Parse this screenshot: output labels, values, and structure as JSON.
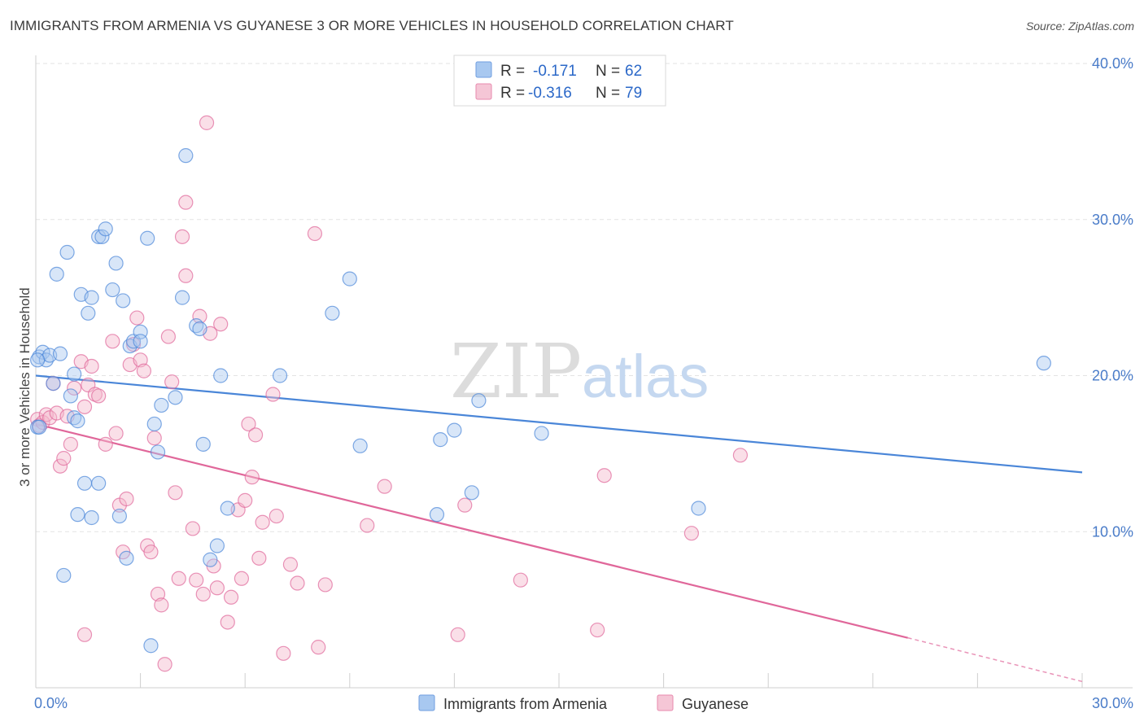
{
  "title": "IMMIGRANTS FROM ARMENIA VS GUYANESE 3 OR MORE VEHICLES IN HOUSEHOLD CORRELATION CHART",
  "source": "Source: ZipAtlas.com",
  "watermark": {
    "zip": "ZIP",
    "atlas": "atlas"
  },
  "legend": {
    "r_label": "R =",
    "n_label": "N =",
    "armenia": {
      "r": "-0.171",
      "n": "62",
      "color": "#a8c8f0"
    },
    "guyanese": {
      "r": "-0.316",
      "n": "79",
      "color": "#f5b8cc"
    }
  },
  "chart_data": {
    "type": "scatter",
    "title": "IMMIGRANTS FROM ARMENIA VS GUYANESE 3 OR MORE VEHICLES IN HOUSEHOLD CORRELATION CHART",
    "xlabel": "",
    "ylabel": "3 or more Vehicles in Household",
    "xlim": [
      0,
      30
    ],
    "ylim": [
      0,
      40
    ],
    "x_tick_labels": [
      "0.0%",
      "30.0%"
    ],
    "y_ticks": [
      10,
      20,
      30,
      40
    ],
    "y_tick_labels": [
      "10.0%",
      "20.0%",
      "30.0%",
      "40.0%"
    ],
    "series": [
      {
        "name": "Immigrants from Armenia",
        "color": "#4a86d8",
        "fill": "#a8c8f0",
        "trend": {
          "x": [
            0,
            30
          ],
          "y": [
            20.0,
            13.8
          ]
        },
        "points": [
          [
            0.1,
            21.2
          ],
          [
            0.2,
            21.5
          ],
          [
            0.3,
            21.0
          ],
          [
            0.4,
            21.3
          ],
          [
            0.5,
            19.5
          ],
          [
            0.6,
            26.5
          ],
          [
            0.7,
            21.4
          ],
          [
            0.8,
            7.2
          ],
          [
            0.9,
            27.9
          ],
          [
            1.0,
            18.7
          ],
          [
            1.1,
            17.3
          ],
          [
            1.1,
            20.1
          ],
          [
            1.2,
            17.1
          ],
          [
            1.2,
            11.1
          ],
          [
            1.3,
            25.2
          ],
          [
            1.4,
            13.1
          ],
          [
            1.5,
            24.0
          ],
          [
            1.6,
            25.0
          ],
          [
            1.6,
            10.9
          ],
          [
            1.8,
            13.1
          ],
          [
            1.8,
            28.9
          ],
          [
            1.9,
            28.9
          ],
          [
            2.0,
            29.4
          ],
          [
            2.2,
            25.5
          ],
          [
            2.3,
            27.2
          ],
          [
            2.4,
            11.0
          ],
          [
            2.5,
            24.8
          ],
          [
            2.6,
            8.3
          ],
          [
            2.7,
            21.9
          ],
          [
            2.8,
            22.2
          ],
          [
            3.0,
            22.8
          ],
          [
            3.0,
            22.2
          ],
          [
            3.2,
            28.8
          ],
          [
            3.4,
            16.9
          ],
          [
            3.5,
            15.1
          ],
          [
            3.3,
            2.7
          ],
          [
            3.6,
            18.1
          ],
          [
            4.0,
            18.6
          ],
          [
            4.2,
            25.0
          ],
          [
            4.3,
            34.1
          ],
          [
            4.6,
            23.2
          ],
          [
            4.7,
            23.0
          ],
          [
            4.8,
            15.6
          ],
          [
            5.0,
            8.2
          ],
          [
            5.2,
            9.1
          ],
          [
            5.3,
            20.0
          ],
          [
            5.5,
            11.5
          ],
          [
            7.0,
            20.0
          ],
          [
            8.5,
            24.0
          ],
          [
            9.0,
            26.2
          ],
          [
            9.3,
            15.5
          ],
          [
            11.5,
            11.1
          ],
          [
            11.6,
            15.9
          ],
          [
            12.0,
            16.5
          ],
          [
            12.5,
            12.5
          ],
          [
            12.7,
            18.4
          ],
          [
            14.5,
            16.3
          ],
          [
            19.0,
            11.5
          ],
          [
            28.9,
            20.8
          ],
          [
            0.05,
            16.7
          ],
          [
            0.05,
            21.0
          ],
          [
            0.1,
            16.7
          ]
        ]
      },
      {
        "name": "Guyanese",
        "color": "#e0679a",
        "fill": "#f5b8cc",
        "trend": {
          "x": [
            0,
            25
          ],
          "y": [
            16.9,
            3.2
          ]
        },
        "trend_dashed": {
          "x": [
            25,
            30
          ],
          "y": [
            3.2,
            0.4
          ]
        },
        "points": [
          [
            0.05,
            17.2
          ],
          [
            0.1,
            16.8
          ],
          [
            0.2,
            17.0
          ],
          [
            0.3,
            17.5
          ],
          [
            0.4,
            17.3
          ],
          [
            0.5,
            19.5
          ],
          [
            0.6,
            17.6
          ],
          [
            0.7,
            14.2
          ],
          [
            0.8,
            14.7
          ],
          [
            0.9,
            17.4
          ],
          [
            1.0,
            15.6
          ],
          [
            1.1,
            19.2
          ],
          [
            1.3,
            20.9
          ],
          [
            1.4,
            18.0
          ],
          [
            1.5,
            19.4
          ],
          [
            1.6,
            20.6
          ],
          [
            1.7,
            18.8
          ],
          [
            1.8,
            18.7
          ],
          [
            1.4,
            3.4
          ],
          [
            2.0,
            15.6
          ],
          [
            2.2,
            22.2
          ],
          [
            2.3,
            16.3
          ],
          [
            2.4,
            11.7
          ],
          [
            2.5,
            8.7
          ],
          [
            2.6,
            12.1
          ],
          [
            2.7,
            20.7
          ],
          [
            2.8,
            22.0
          ],
          [
            2.9,
            23.7
          ],
          [
            3.0,
            21.0
          ],
          [
            3.1,
            20.3
          ],
          [
            3.2,
            9.1
          ],
          [
            3.3,
            8.7
          ],
          [
            3.4,
            16.0
          ],
          [
            3.5,
            6.0
          ],
          [
            3.6,
            5.3
          ],
          [
            3.7,
            1.5
          ],
          [
            3.8,
            22.5
          ],
          [
            3.9,
            19.6
          ],
          [
            4.0,
            12.5
          ],
          [
            4.1,
            7.0
          ],
          [
            4.2,
            28.9
          ],
          [
            4.3,
            26.4
          ],
          [
            4.3,
            31.1
          ],
          [
            4.5,
            10.2
          ],
          [
            4.6,
            6.9
          ],
          [
            4.7,
            23.8
          ],
          [
            4.8,
            6.0
          ],
          [
            4.9,
            36.2
          ],
          [
            5.0,
            22.7
          ],
          [
            5.1,
            7.8
          ],
          [
            5.2,
            6.4
          ],
          [
            5.3,
            23.3
          ],
          [
            5.5,
            4.2
          ],
          [
            5.6,
            5.8
          ],
          [
            5.8,
            11.4
          ],
          [
            5.9,
            7.0
          ],
          [
            6.0,
            12.0
          ],
          [
            6.1,
            16.9
          ],
          [
            6.2,
            13.5
          ],
          [
            6.3,
            16.2
          ],
          [
            6.4,
            8.3
          ],
          [
            6.5,
            10.6
          ],
          [
            6.8,
            18.8
          ],
          [
            6.9,
            11.0
          ],
          [
            7.1,
            2.2
          ],
          [
            7.3,
            7.9
          ],
          [
            7.5,
            6.7
          ],
          [
            8.0,
            29.1
          ],
          [
            8.1,
            2.6
          ],
          [
            8.3,
            6.6
          ],
          [
            9.5,
            10.4
          ],
          [
            10.0,
            12.9
          ],
          [
            12.1,
            3.4
          ],
          [
            12.3,
            11.7
          ],
          [
            13.9,
            6.9
          ],
          [
            16.1,
            3.7
          ],
          [
            16.3,
            13.6
          ],
          [
            18.8,
            9.9
          ],
          [
            20.2,
            14.9
          ]
        ]
      }
    ]
  },
  "bottom_legend": {
    "armenia_label": "Immigrants from Armenia",
    "guyanese_label": "Guyanese"
  }
}
